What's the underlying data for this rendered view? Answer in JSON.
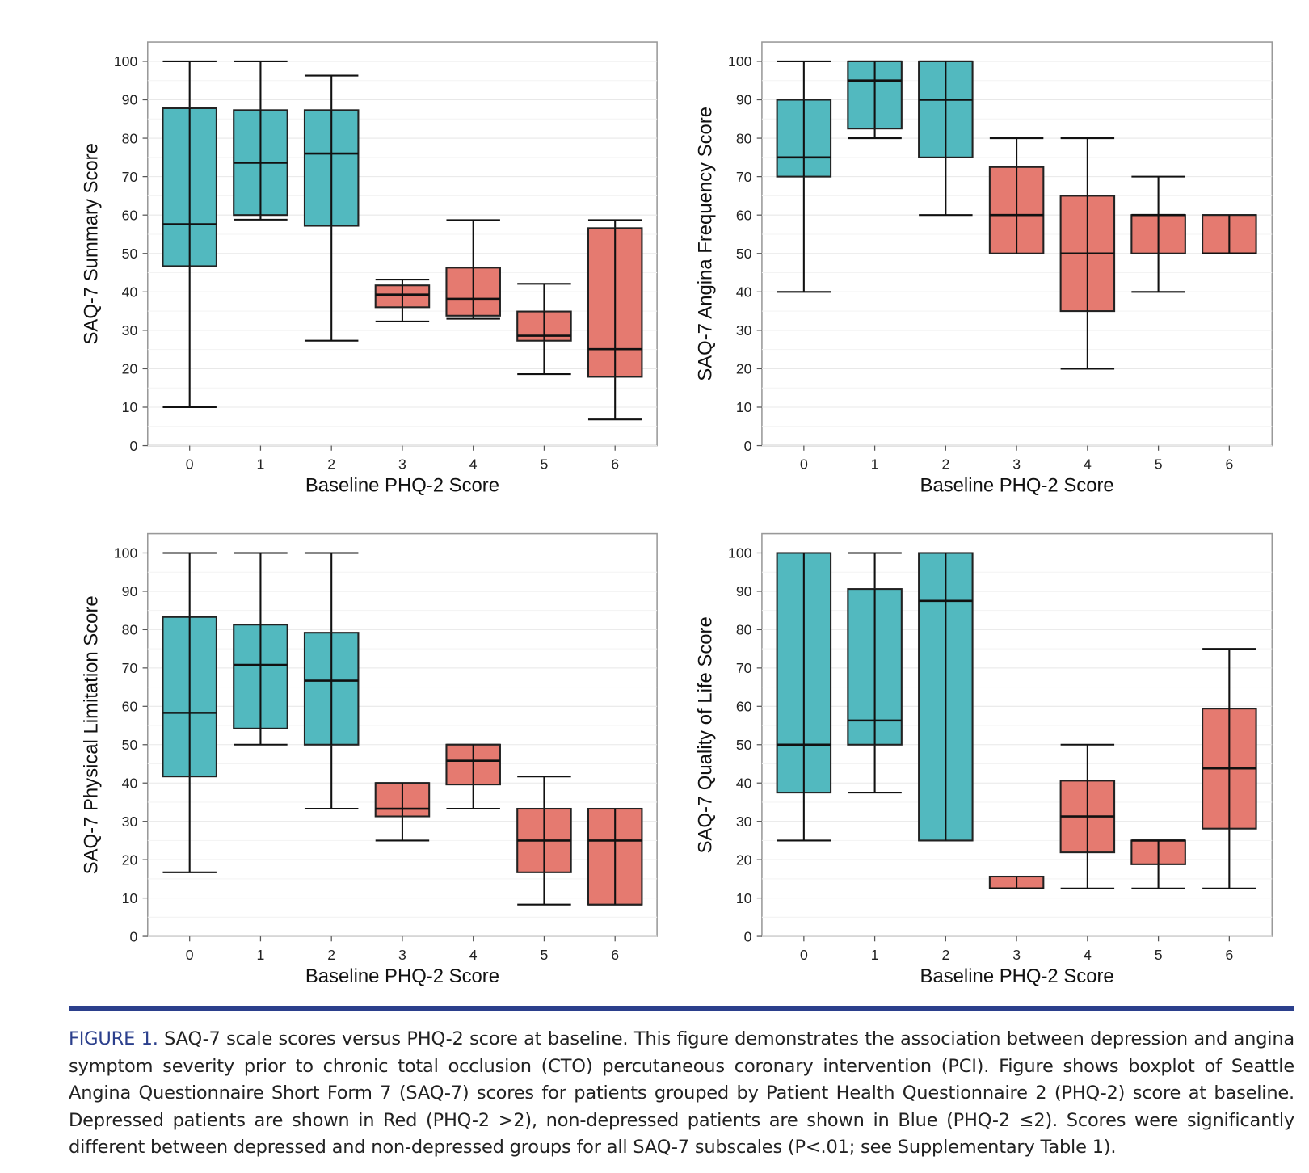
{
  "colors": {
    "non_depressed": "#52b9bf",
    "depressed": "#e57a70",
    "rule": "#2b3f8c"
  },
  "chart_data": [
    {
      "type": "boxplot",
      "xlabel": "Baseline PHQ-2 Score",
      "ylabel": "SAQ-7 Summary Score",
      "ylim": [
        0,
        100
      ],
      "yticks": [
        0,
        10,
        20,
        30,
        40,
        50,
        60,
        70,
        80,
        90,
        100
      ],
      "grid": true,
      "categories": [
        "0",
        "1",
        "2",
        "3",
        "4",
        "5",
        "6"
      ],
      "boxes": [
        {
          "min": 10,
          "q1": 46.7,
          "median": 57.6,
          "q3": 87.8,
          "max": 100,
          "group": "non_depressed"
        },
        {
          "min": 58.8,
          "q1": 60,
          "median": 73.6,
          "q3": 87.3,
          "max": 100,
          "group": "non_depressed"
        },
        {
          "min": 27.3,
          "q1": 57.2,
          "median": 76,
          "q3": 87.3,
          "max": 96.3,
          "group": "non_depressed"
        },
        {
          "min": 32.3,
          "q1": 36,
          "median": 39.3,
          "q3": 41.7,
          "max": 43.2,
          "group": "depressed"
        },
        {
          "min": 33,
          "q1": 33.8,
          "median": 38.2,
          "q3": 46.3,
          "max": 58.7,
          "group": "depressed"
        },
        {
          "min": 18.6,
          "q1": 27.3,
          "median": 28.6,
          "q3": 34.9,
          "max": 42.1,
          "group": "depressed"
        },
        {
          "min": 6.8,
          "q1": 17.9,
          "median": 25.1,
          "q3": 56.6,
          "max": 58.7,
          "group": "depressed"
        }
      ]
    },
    {
      "type": "boxplot",
      "xlabel": "Baseline PHQ-2 Score",
      "ylabel": "SAQ-7 Angina Frequency Score",
      "ylim": [
        0,
        100
      ],
      "yticks": [
        0,
        10,
        20,
        30,
        40,
        50,
        60,
        70,
        80,
        90,
        100
      ],
      "grid": true,
      "categories": [
        "0",
        "1",
        "2",
        "3",
        "4",
        "5",
        "6"
      ],
      "boxes": [
        {
          "min": 40,
          "q1": 70,
          "median": 75,
          "q3": 90,
          "max": 100,
          "group": "non_depressed"
        },
        {
          "min": 80,
          "q1": 82.5,
          "median": 95,
          "q3": 100,
          "max": 100,
          "group": "non_depressed"
        },
        {
          "min": 60,
          "q1": 75,
          "median": 90,
          "q3": 100,
          "max": 100,
          "group": "non_depressed"
        },
        {
          "min": 50,
          "q1": 50,
          "median": 60,
          "q3": 72.5,
          "max": 80,
          "group": "depressed"
        },
        {
          "min": 20,
          "q1": 35,
          "median": 50,
          "q3": 65,
          "max": 80,
          "group": "depressed"
        },
        {
          "min": 40,
          "q1": 50,
          "median": 60,
          "q3": 60,
          "max": 70,
          "group": "depressed"
        },
        {
          "min": 50,
          "q1": 50,
          "median": 50,
          "q3": 60,
          "max": 60,
          "group": "depressed"
        }
      ]
    },
    {
      "type": "boxplot",
      "xlabel": "Baseline PHQ-2 Score",
      "ylabel": "SAQ-7 Physical Limitation Score",
      "ylim": [
        0,
        100
      ],
      "yticks": [
        0,
        10,
        20,
        30,
        40,
        50,
        60,
        70,
        80,
        90,
        100
      ],
      "grid": true,
      "categories": [
        "0",
        "1",
        "2",
        "3",
        "4",
        "5",
        "6"
      ],
      "boxes": [
        {
          "min": 16.7,
          "q1": 41.7,
          "median": 58.3,
          "q3": 83.3,
          "max": 100,
          "group": "non_depressed"
        },
        {
          "min": 50,
          "q1": 54.2,
          "median": 70.8,
          "q3": 81.3,
          "max": 100,
          "group": "non_depressed"
        },
        {
          "min": 33.3,
          "q1": 50,
          "median": 66.7,
          "q3": 79.2,
          "max": 100,
          "group": "non_depressed"
        },
        {
          "min": 25,
          "q1": 31.3,
          "median": 33.3,
          "q3": 40,
          "max": 40,
          "group": "depressed"
        },
        {
          "min": 33.3,
          "q1": 39.6,
          "median": 45.8,
          "q3": 50,
          "max": 50,
          "group": "depressed"
        },
        {
          "min": 8.3,
          "q1": 16.7,
          "median": 25,
          "q3": 33.3,
          "max": 41.7,
          "group": "depressed"
        },
        {
          "min": 8.3,
          "q1": 8.3,
          "median": 25,
          "q3": 33.3,
          "max": 33.3,
          "group": "depressed"
        }
      ]
    },
    {
      "type": "boxplot",
      "xlabel": "Baseline PHQ-2 Score",
      "ylabel": "SAQ-7 Quality of Life Score",
      "ylim": [
        0,
        100
      ],
      "yticks": [
        0,
        10,
        20,
        30,
        40,
        50,
        60,
        70,
        80,
        90,
        100
      ],
      "grid": true,
      "categories": [
        "0",
        "1",
        "2",
        "3",
        "4",
        "5",
        "6"
      ],
      "boxes": [
        {
          "min": 25,
          "q1": 37.5,
          "median": 50,
          "q3": 100,
          "max": 100,
          "group": "non_depressed"
        },
        {
          "min": 37.5,
          "q1": 50,
          "median": 56.3,
          "q3": 90.6,
          "max": 100,
          "group": "non_depressed"
        },
        {
          "min": 25,
          "q1": 25,
          "median": 87.5,
          "q3": 100,
          "max": 100,
          "group": "non_depressed"
        },
        {
          "min": 12.5,
          "q1": 12.5,
          "median": 12.5,
          "q3": 15.6,
          "max": 15.6,
          "group": "depressed"
        },
        {
          "min": 12.5,
          "q1": 21.9,
          "median": 31.3,
          "q3": 40.6,
          "max": 50,
          "group": "depressed"
        },
        {
          "min": 12.5,
          "q1": 18.8,
          "median": 25,
          "q3": 25,
          "max": 25,
          "group": "depressed"
        },
        {
          "min": 12.5,
          "q1": 28.1,
          "median": 43.8,
          "q3": 59.4,
          "max": 75,
          "group": "depressed"
        }
      ]
    }
  ],
  "caption": {
    "label": "FIGURE 1.",
    "text": " SAQ-7 scale scores versus PHQ-2 score at baseline. This figure demonstrates the association between depression and angina symptom severity prior to chronic total occlusion (CTO) percutaneous coronary intervention (PCI). Figure shows boxplot of Seattle Angina Questionnaire Short Form 7 (SAQ-7) scores for patients grouped by Patient Health Questionnaire 2 (PHQ-2) score at baseline. Depressed patients are shown in Red (PHQ-2 >2), non-depressed patients are shown in Blue (PHQ-2 ≤2). Scores were significantly different between depressed and non-depressed groups for all SAQ-7 subscales (P<.01; see Supplementary Table 1)."
  }
}
